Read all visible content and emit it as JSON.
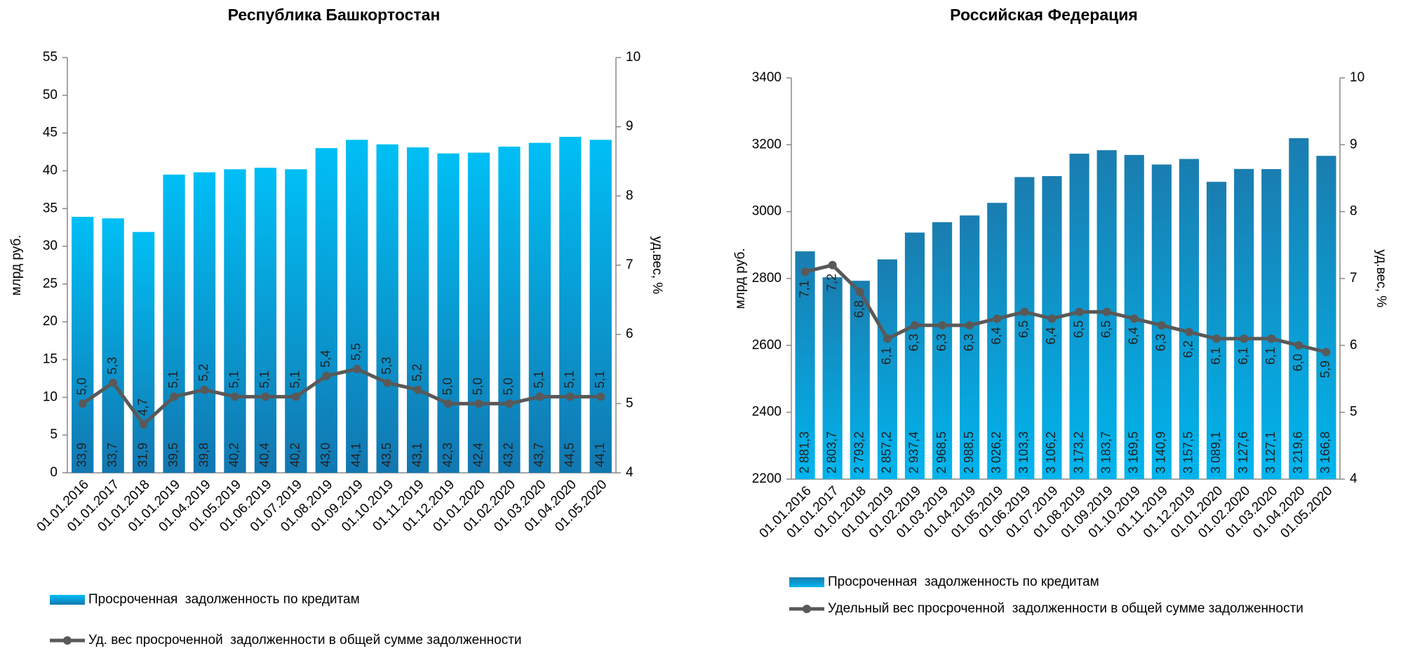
{
  "chart_data": [
    {
      "type": "bar",
      "title": "Республика Башкортостан",
      "ylabel": "млрд руб.",
      "y2label": "уд.вес, %",
      "categories": [
        "01.01.2016",
        "01.01.2017",
        "01.01.2018",
        "01.01.2019",
        "01.04.2019",
        "01.05.2019",
        "01.06.2019",
        "01.07.2019",
        "01.08.2019",
        "01.09.2019",
        "01.10.2019",
        "01.11.2019",
        "01.12.2019",
        "01.01.2020",
        "01.02.2020",
        "01.03.2020",
        "01.04.2020",
        "01.05.2020"
      ],
      "series": [
        {
          "name": "Просроченная  задолженность по кредитам",
          "color": "#00b0f0",
          "values": [
            33.9,
            33.7,
            31.9,
            39.5,
            39.8,
            40.2,
            40.4,
            40.2,
            43.0,
            44.1,
            43.5,
            43.1,
            42.3,
            42.4,
            43.2,
            43.7,
            44.5,
            44.1
          ],
          "value_labels": [
            "33,9",
            "33,7",
            "31,9",
            "39,5",
            "39,8",
            "40,2",
            "40,4",
            "40,2",
            "43,0",
            "44,1",
            "43,5",
            "43,1",
            "42,3",
            "42,4",
            "43,2",
            "43,7",
            "44,5",
            "44,1"
          ]
        },
        {
          "name": "Уд. вес просроченной  задолженности в общей сумме задолженности",
          "color": "#595959",
          "type": "line",
          "axis": "y2",
          "values": [
            5.0,
            5.3,
            4.7,
            5.1,
            5.2,
            5.1,
            5.1,
            5.1,
            5.4,
            5.5,
            5.3,
            5.2,
            5.0,
            5.0,
            5.0,
            5.1,
            5.1,
            5.1
          ],
          "value_labels": [
            "5,0",
            "5,3",
            "4,7",
            "5,1",
            "5,2",
            "5,1",
            "5,1",
            "5,1",
            "5,4",
            "5,5",
            "5,3",
            "5,2",
            "5,0",
            "5,0",
            "5,0",
            "5,1",
            "5,1",
            "5,1"
          ]
        }
      ],
      "ylim": [
        0,
        55
      ],
      "yticks": [
        0,
        5,
        10,
        15,
        20,
        25,
        30,
        35,
        40,
        45,
        50,
        55
      ],
      "y2lim": [
        4,
        10
      ],
      "y2ticks": [
        4,
        5,
        6,
        7,
        8,
        9,
        10
      ]
    },
    {
      "type": "bar",
      "title": "Российская Федерация",
      "ylabel": "млрд руб.",
      "y2label": "уд.вес, %",
      "categories": [
        "01.01.2016",
        "01.01.2017",
        "01.01.2018",
        "01.01.2019",
        "01.02.2019",
        "01.03.2019",
        "01.04.2019",
        "01.05.2019",
        "01.06.2019",
        "01.07.2019",
        "01.08.2019",
        "01.09.2019",
        "01.10.2019",
        "01.11.2019",
        "01.12.2019",
        "01.01.2020",
        "01.02.2020",
        "01.03.2020",
        "01.04.2020",
        "01.05.2020"
      ],
      "series": [
        {
          "name": "Просроченная  задолженность по кредитам",
          "color": "#1a86b8",
          "values": [
            2881.3,
            2803.7,
            2793.2,
            2857.2,
            2937.4,
            2968.5,
            2988.5,
            3026.2,
            3103.3,
            3106.2,
            3173.2,
            3183.7,
            3169.5,
            3140.9,
            3157.5,
            3089.1,
            3127.6,
            3127.1,
            3219.6,
            3166.8
          ],
          "value_labels": [
            "2 881,3",
            "2 803,7",
            "2 793,2",
            "2 857,2",
            "2 937,4",
            "2 968,5",
            "2 988,5",
            "3 026,2",
            "3 103,3",
            "3 106,2",
            "3 173,2",
            "3 183,7",
            "3 169,5",
            "3 140,9",
            "3 157,5",
            "3 089,1",
            "3 127,6",
            "3 127,1",
            "3 219,6",
            "3 166,8"
          ]
        },
        {
          "name": "Удельный вес просроченной  задолженности в общей сумме задолженности",
          "color": "#595959",
          "type": "line",
          "axis": "y2",
          "values": [
            7.1,
            7.2,
            6.8,
            6.1,
            6.3,
            6.3,
            6.3,
            6.4,
            6.5,
            6.4,
            6.5,
            6.5,
            6.4,
            6.3,
            6.2,
            6.1,
            6.1,
            6.1,
            6.0,
            5.9
          ],
          "value_labels": [
            "7,1",
            "7,2",
            "6,8",
            "6,1",
            "6,3",
            "6,3",
            "6,3",
            "6,4",
            "6,5",
            "6,4",
            "6,5",
            "6,5",
            "6,4",
            "6,3",
            "6,2",
            "6,1",
            "6,1",
            "6,1",
            "6,0",
            "5,9"
          ]
        }
      ],
      "ylim": [
        2200,
        3400
      ],
      "yticks": [
        2200,
        2400,
        2600,
        2800,
        3000,
        3200,
        3400
      ],
      "y2lim": [
        4,
        10
      ],
      "y2ticks": [
        4,
        5,
        6,
        7,
        8,
        9,
        10
      ]
    }
  ]
}
